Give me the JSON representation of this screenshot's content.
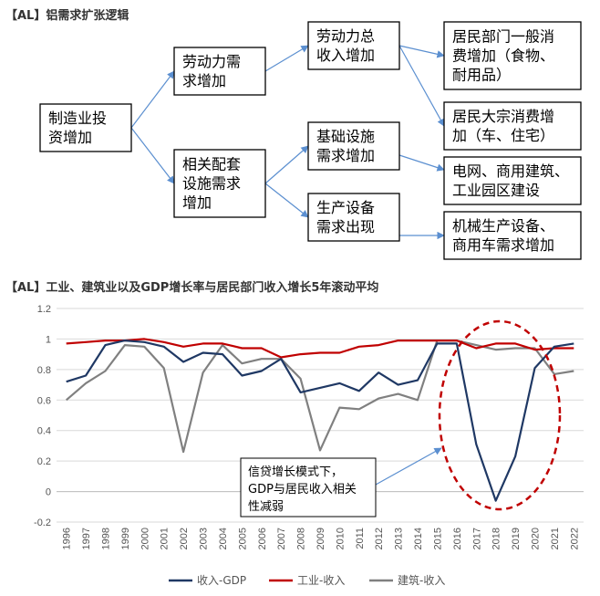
{
  "diagram": {
    "title": "【AL】铝需求扩张逻辑",
    "boxes": [
      {
        "id": "manufacturing",
        "lines": [
          "制造业投",
          "资增加"
        ]
      },
      {
        "id": "labor",
        "lines": [
          "劳动力需",
          "求增加"
        ]
      },
      {
        "id": "facility",
        "lines": [
          "相关配套",
          "设施需求",
          "增加"
        ]
      },
      {
        "id": "income",
        "lines": [
          "劳动力总",
          "收入增加"
        ]
      },
      {
        "id": "infra",
        "lines": [
          "基础设施",
          "需求增加"
        ]
      },
      {
        "id": "equipment",
        "lines": [
          "生产设备",
          "需求出现"
        ]
      },
      {
        "id": "household",
        "lines": [
          "居民部门一般消",
          "费增加（食物、",
          "耐用品）"
        ]
      },
      {
        "id": "bulk",
        "lines": [
          "居民大宗消费增",
          "加（车、住宅）"
        ]
      },
      {
        "id": "grid",
        "lines": [
          "电网、商用建筑、",
          "工业园区建设"
        ]
      },
      {
        "id": "machinery",
        "lines": [
          "机械生产设备、",
          "商用车需求增加"
        ]
      }
    ]
  },
  "chart_title": "【AL】工业、建筑业以及GDP增长率与居民部门收入增长5年滚动平均",
  "annotation": [
    "信贷增长模式下，",
    "GDP与居民收入相关",
    "性减弱"
  ],
  "chart_data": {
    "type": "line",
    "x": [
      "1996",
      "1997",
      "1998",
      "1999",
      "2000",
      "2001",
      "2002",
      "2003",
      "2004",
      "2005",
      "2006",
      "2007",
      "2008",
      "2009",
      "2010",
      "2011",
      "2012",
      "2013",
      "2014",
      "2015",
      "2016",
      "2017",
      "2018",
      "2019",
      "2020",
      "2021",
      "2022"
    ],
    "ylim": [
      -0.2,
      1.2
    ],
    "yticks": [
      "1.2",
      "1",
      "0.8",
      "0.6",
      "0.4",
      "0.2",
      "0",
      "-0.2"
    ],
    "grid": true,
    "legend_position": "bottom",
    "series": [
      {
        "name": "收入-GDP",
        "color": "#1f3864",
        "values": [
          0.72,
          0.76,
          0.96,
          0.99,
          0.98,
          0.95,
          0.85,
          0.91,
          0.9,
          0.76,
          0.79,
          0.87,
          0.65,
          0.68,
          0.71,
          0.66,
          0.78,
          0.7,
          0.73,
          0.97,
          0.97,
          0.31,
          -0.06,
          0.23,
          0.81,
          0.95,
          0.97
        ]
      },
      {
        "name": "工业-收入",
        "color": "#c00000",
        "values": [
          0.97,
          0.98,
          0.99,
          0.99,
          1.0,
          0.98,
          0.95,
          0.97,
          0.97,
          0.94,
          0.94,
          0.88,
          0.9,
          0.91,
          0.91,
          0.95,
          0.96,
          0.99,
          0.99,
          0.99,
          0.99,
          0.94,
          0.97,
          0.97,
          0.93,
          0.94,
          0.94
        ]
      },
      {
        "name": "建筑-收入",
        "color": "#808080",
        "values": [
          0.6,
          0.71,
          0.79,
          0.96,
          0.95,
          0.81,
          0.26,
          0.78,
          0.96,
          0.84,
          0.87,
          0.87,
          0.74,
          0.27,
          0.55,
          0.54,
          0.61,
          0.64,
          0.6,
          0.99,
          0.99,
          0.96,
          0.93,
          0.94,
          0.94,
          0.77,
          0.79
        ]
      }
    ]
  }
}
